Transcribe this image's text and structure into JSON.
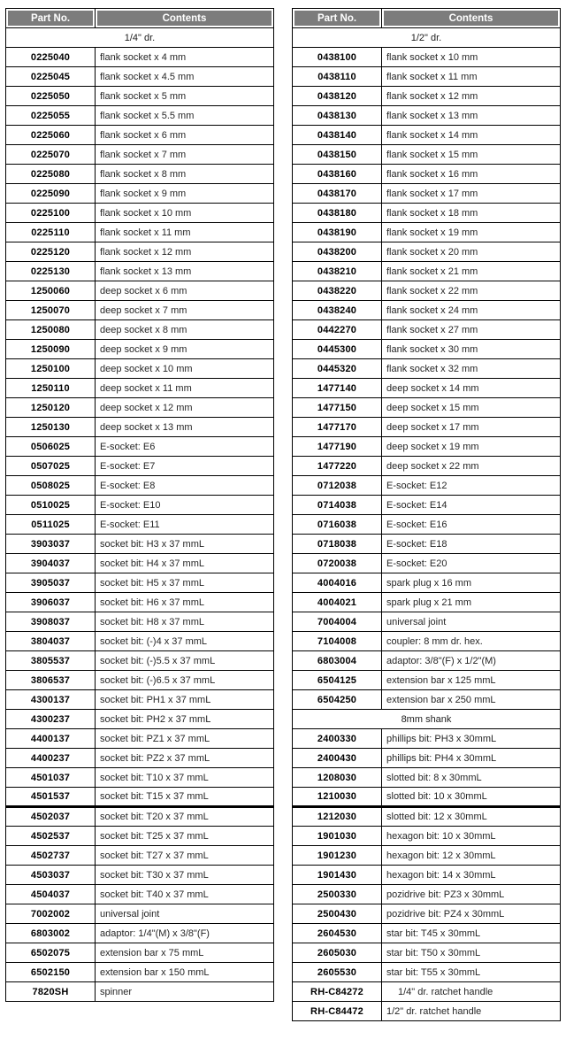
{
  "colors": {
    "header_bg": "#7c7c7c",
    "header_text": "#ffffff",
    "border": "#000000",
    "text": "#1c1c1c"
  },
  "tables": [
    {
      "id": "left",
      "columns": [
        "Part No.",
        "Contents"
      ],
      "rows": [
        {
          "type": "section",
          "label": "1/4\" dr."
        },
        {
          "type": "item",
          "part": "0225040",
          "contents": "flank socket x 4 mm"
        },
        {
          "type": "item",
          "part": "0225045",
          "contents": "flank socket x 4.5 mm"
        },
        {
          "type": "item",
          "part": "0225050",
          "contents": "flank socket x 5 mm"
        },
        {
          "type": "item",
          "part": "0225055",
          "contents": "flank socket x 5.5 mm"
        },
        {
          "type": "item",
          "part": "0225060",
          "contents": "flank socket x 6 mm"
        },
        {
          "type": "item",
          "part": "0225070",
          "contents": "flank socket x 7 mm"
        },
        {
          "type": "item",
          "part": "0225080",
          "contents": "flank socket x 8 mm"
        },
        {
          "type": "item",
          "part": "0225090",
          "contents": "flank socket x 9 mm"
        },
        {
          "type": "item",
          "part": "0225100",
          "contents": "flank socket x 10 mm"
        },
        {
          "type": "item",
          "part": "0225110",
          "contents": "flank socket x 11 mm"
        },
        {
          "type": "item",
          "part": "0225120",
          "contents": "flank socket x 12 mm"
        },
        {
          "type": "item",
          "part": "0225130",
          "contents": "flank socket x 13 mm"
        },
        {
          "type": "item",
          "part": "1250060",
          "contents": "deep socket x 6 mm"
        },
        {
          "type": "item",
          "part": "1250070",
          "contents": "deep socket x 7 mm"
        },
        {
          "type": "item",
          "part": "1250080",
          "contents": "deep socket x 8 mm"
        },
        {
          "type": "item",
          "part": "1250090",
          "contents": "deep socket x 9 mm"
        },
        {
          "type": "item",
          "part": "1250100",
          "contents": "deep socket x 10 mm"
        },
        {
          "type": "item",
          "part": "1250110",
          "contents": "deep socket x 11 mm"
        },
        {
          "type": "item",
          "part": "1250120",
          "contents": "deep socket x 12 mm"
        },
        {
          "type": "item",
          "part": "1250130",
          "contents": "deep socket x 13 mm"
        },
        {
          "type": "item",
          "part": "0506025",
          "contents": "E-socket: E6"
        },
        {
          "type": "item",
          "part": "0507025",
          "contents": "E-socket: E7"
        },
        {
          "type": "item",
          "part": "0508025",
          "contents": "E-socket: E8"
        },
        {
          "type": "item",
          "part": "0510025",
          "contents": "E-socket: E10"
        },
        {
          "type": "item",
          "part": "0511025",
          "contents": "E-socket: E11"
        },
        {
          "type": "item",
          "part": "3903037",
          "contents": "socket bit: H3 x 37 mmL"
        },
        {
          "type": "item",
          "part": "3904037",
          "contents": "socket bit: H4 x 37 mmL"
        },
        {
          "type": "item",
          "part": "3905037",
          "contents": "socket bit: H5 x 37 mmL"
        },
        {
          "type": "item",
          "part": "3906037",
          "contents": "socket bit: H6 x 37 mmL"
        },
        {
          "type": "item",
          "part": "3908037",
          "contents": "socket bit: H8 x 37 mmL"
        },
        {
          "type": "item",
          "part": "3804037",
          "contents": "socket bit: (-)4 x 37 mmL"
        },
        {
          "type": "item",
          "part": "3805537",
          "contents": "socket bit: (-)5.5 x 37 mmL"
        },
        {
          "type": "item",
          "part": "3806537",
          "contents": "socket bit: (-)6.5 x 37 mmL"
        },
        {
          "type": "item",
          "part": "4300137",
          "contents": "socket bit: PH1 x 37 mmL"
        },
        {
          "type": "item",
          "part": "4300237",
          "contents": "socket bit: PH2 x 37 mmL"
        },
        {
          "type": "item",
          "part": "4400137",
          "contents": "socket bit: PZ1 x 37 mmL"
        },
        {
          "type": "item",
          "part": "4400237",
          "contents": "socket bit: PZ2 x 37 mmL"
        },
        {
          "type": "item",
          "part": "4501037",
          "contents": "socket bit: T10 x 37 mmL"
        },
        {
          "type": "item",
          "part": "4501537",
          "contents": "socket bit: T15 x 37 mmL"
        },
        {
          "type": "item",
          "part": "4502037",
          "contents": "socket bit: T20 x 37 mmL",
          "thick_top": true
        },
        {
          "type": "item",
          "part": "4502537",
          "contents": "socket bit: T25 x 37 mmL"
        },
        {
          "type": "item",
          "part": "4502737",
          "contents": "socket bit: T27 x 37 mmL"
        },
        {
          "type": "item",
          "part": "4503037",
          "contents": "socket bit: T30 x 37 mmL"
        },
        {
          "type": "item",
          "part": "4504037",
          "contents": "socket bit: T40 x 37 mmL"
        },
        {
          "type": "item",
          "part": "7002002",
          "contents": "universal joint"
        },
        {
          "type": "item",
          "part": "6803002",
          "contents": "adaptor: 1/4\"(M) x 3/8\"(F)"
        },
        {
          "type": "item",
          "part": "6502075",
          "contents": "extension bar x 75 mmL"
        },
        {
          "type": "item",
          "part": "6502150",
          "contents": "extension bar x 150 mmL"
        },
        {
          "type": "item",
          "part": "7820SH",
          "contents": "spinner"
        }
      ]
    },
    {
      "id": "right",
      "columns": [
        "Part No.",
        "Contents"
      ],
      "rows": [
        {
          "type": "section",
          "label": "1/2\" dr."
        },
        {
          "type": "item",
          "part": "0438100",
          "contents": "flank socket x 10 mm"
        },
        {
          "type": "item",
          "part": "0438110",
          "contents": "flank socket x 11 mm"
        },
        {
          "type": "item",
          "part": "0438120",
          "contents": "flank socket x 12 mm"
        },
        {
          "type": "item",
          "part": "0438130",
          "contents": "flank socket x 13 mm"
        },
        {
          "type": "item",
          "part": "0438140",
          "contents": "flank socket x 14 mm"
        },
        {
          "type": "item",
          "part": "0438150",
          "contents": "flank socket x 15 mm"
        },
        {
          "type": "item",
          "part": "0438160",
          "contents": "flank socket x 16 mm"
        },
        {
          "type": "item",
          "part": "0438170",
          "contents": "flank socket x 17 mm"
        },
        {
          "type": "item",
          "part": "0438180",
          "contents": "flank socket x 18 mm"
        },
        {
          "type": "item",
          "part": "0438190",
          "contents": "flank socket x 19 mm"
        },
        {
          "type": "item",
          "part": "0438200",
          "contents": "flank socket x 20 mm"
        },
        {
          "type": "item",
          "part": "0438210",
          "contents": "flank socket x 21 mm"
        },
        {
          "type": "item",
          "part": "0438220",
          "contents": "flank socket x 22 mm"
        },
        {
          "type": "item",
          "part": "0438240",
          "contents": "flank socket x 24 mm"
        },
        {
          "type": "item",
          "part": "0442270",
          "contents": "flank socket x 27 mm"
        },
        {
          "type": "item",
          "part": "0445300",
          "contents": "flank socket x 30 mm"
        },
        {
          "type": "item",
          "part": "0445320",
          "contents": "flank socket x 32 mm"
        },
        {
          "type": "item",
          "part": "1477140",
          "contents": "deep socket x 14 mm"
        },
        {
          "type": "item",
          "part": "1477150",
          "contents": "deep socket x 15 mm"
        },
        {
          "type": "item",
          "part": "1477170",
          "contents": "deep socket x 17 mm"
        },
        {
          "type": "item",
          "part": "1477190",
          "contents": "deep socket x 19 mm"
        },
        {
          "type": "item",
          "part": "1477220",
          "contents": "deep socket x 22 mm"
        },
        {
          "type": "item",
          "part": "0712038",
          "contents": "E-socket: E12"
        },
        {
          "type": "item",
          "part": "0714038",
          "contents": "E-socket: E14"
        },
        {
          "type": "item",
          "part": "0716038",
          "contents": "E-socket: E16"
        },
        {
          "type": "item",
          "part": "0718038",
          "contents": "E-socket: E18"
        },
        {
          "type": "item",
          "part": "0720038",
          "contents": "E-socket: E20"
        },
        {
          "type": "item",
          "part": "4004016",
          "contents": "spark plug x 16 mm"
        },
        {
          "type": "item",
          "part": "4004021",
          "contents": "spark plug x 21 mm"
        },
        {
          "type": "item",
          "part": "7004004",
          "contents": "universal joint"
        },
        {
          "type": "item",
          "part": "7104008",
          "contents": "coupler: 8 mm dr. hex."
        },
        {
          "type": "item",
          "part": "6803004",
          "contents": "adaptor: 3/8\"(F) x 1/2\"(M)"
        },
        {
          "type": "item",
          "part": "6504125",
          "contents": "extension bar x 125 mmL"
        },
        {
          "type": "item",
          "part": "6504250",
          "contents": "extension bar x 250 mmL"
        },
        {
          "type": "section",
          "label": "8mm shank"
        },
        {
          "type": "item",
          "part": "2400330",
          "contents": "phillips bit: PH3 x 30mmL"
        },
        {
          "type": "item",
          "part": "2400430",
          "contents": "phillips bit: PH4 x 30mmL"
        },
        {
          "type": "item",
          "part": "1208030",
          "contents": "slotted bit: 8 x 30mmL"
        },
        {
          "type": "item",
          "part": "1210030",
          "contents": "slotted bit: 10 x 30mmL"
        },
        {
          "type": "item",
          "part": "1212030",
          "contents": "slotted bit: 12 x 30mmL",
          "thick_top": true
        },
        {
          "type": "item",
          "part": "1901030",
          "contents": "hexagon bit: 10 x 30mmL"
        },
        {
          "type": "item",
          "part": "1901230",
          "contents": "hexagon bit: 12 x 30mmL"
        },
        {
          "type": "item",
          "part": "1901430",
          "contents": "hexagon bit: 14 x 30mmL"
        },
        {
          "type": "item",
          "part": "2500330",
          "contents": "pozidrive bit: PZ3 x 30mmL"
        },
        {
          "type": "item",
          "part": "2500430",
          "contents": "pozidrive bit: PZ4 x 30mmL"
        },
        {
          "type": "item",
          "part": "2604530",
          "contents": "star bit: T45 x 30mmL"
        },
        {
          "type": "item",
          "part": "2605030",
          "contents": "star bit: T50 x 30mmL"
        },
        {
          "type": "item",
          "part": "2605530",
          "contents": "star bit: T55 x 30mmL"
        },
        {
          "type": "item",
          "part": "RH-C84272",
          "contents": "1/4\" dr. ratchet handle",
          "indent": true
        },
        {
          "type": "item",
          "part": "RH-C84472",
          "contents": "1/2\" dr. ratchet handle"
        }
      ]
    }
  ]
}
